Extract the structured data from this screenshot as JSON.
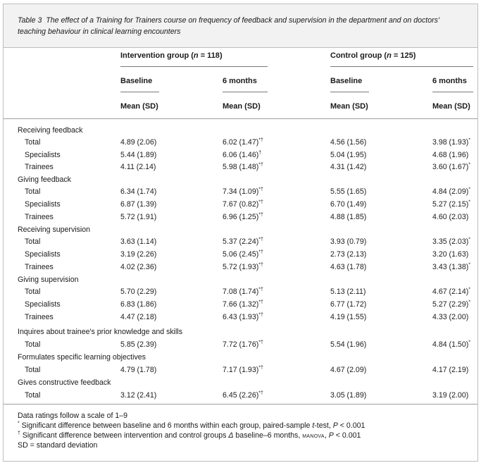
{
  "caption": {
    "label": "Table 3",
    "text": "The effect of a Training for Trainers course on frequency of feedback and supervision in the department and on doctors' teaching behaviour in clinical learning encounters"
  },
  "groups": {
    "intervention": {
      "name": "Intervention group",
      "n_label": "n",
      "n_value": " = 118"
    },
    "control": {
      "name": "Control group",
      "n_label": "n",
      "n_value": " = 125"
    }
  },
  "subheaders": {
    "baseline": "Baseline",
    "six_months": "6 months",
    "mean_sd": "Mean (SD)"
  },
  "rows": [
    {
      "label": "Receiving feedback",
      "section": true
    },
    {
      "label": "Total",
      "c1": "4.89 (2.06)",
      "c2": "6.02 (1.47)*†",
      "c3": "4.56 (1.56)",
      "c4": "3.98 (1.93)*"
    },
    {
      "label": "Specialists",
      "c1": "5.44 (1.89)",
      "c2": "6.06 (1.46)†",
      "c3": "5.04 (1.95)",
      "c4": "4.68 (1.96)"
    },
    {
      "label": "Trainees",
      "c1": "4.11 (2.14)",
      "c2": "5.98 (1.48)*†",
      "c3": "4.31 (1.42)",
      "c4": "3.60 (1.67)*"
    },
    {
      "label": "Giving feedback",
      "section": true
    },
    {
      "label": "Total",
      "c1": "6.34 (1.74)",
      "c2": "7.34 (1.09)*†",
      "c3": "5.55 (1.65)",
      "c4": "4.84 (2.09)*"
    },
    {
      "label": "Specialists",
      "c1": "6.87 (1.39)",
      "c2": "7.67 (0.82)*†",
      "c3": "6.70 (1.49)",
      "c4": "5.27 (2.15)*"
    },
    {
      "label": "Trainees",
      "c1": "5.72 (1.91)",
      "c2": "6.96 (1.25)*†",
      "c3": "4.88 (1.85)",
      "c4": "4.60 (2.03)"
    },
    {
      "label": "Receiving supervision",
      "section": true
    },
    {
      "label": "Total",
      "c1": "3.63 (1.14)",
      "c2": "5.37 (2.24)*†",
      "c3": "3.93 (0.79)",
      "c4": "3.35 (2.03)*"
    },
    {
      "label": "Specialists",
      "c1": "3.19 (2.26)",
      "c2": "5.06 (2.45)*†",
      "c3": "2.73 (2.13)",
      "c4": "3.20 (1.63)"
    },
    {
      "label": "Trainees",
      "c1": "4.02 (2.36)",
      "c2": "5.72 (1.93)*†",
      "c3": "4.63 (1.78)",
      "c4": "3.43 (1.38)*"
    },
    {
      "label": "Giving supervision",
      "section": true
    },
    {
      "label": "Total",
      "c1": "5.70 (2.29)",
      "c2": "7.08 (1.74)*†",
      "c3": "5.13 (2.11)",
      "c4": "4.67 (2.14)*"
    },
    {
      "label": "Specialists",
      "c1": "6.83 (1.86)",
      "c2": "7.66 (1.32)*†",
      "c3": "6.77 (1.72)",
      "c4": "5.27 (2.29)*"
    },
    {
      "label": "Trainees",
      "c1": "4.47 (2.18)",
      "c2": "6.43 (1.93)*†",
      "c3": "4.19 (1.55)",
      "c4": "4.33 (2.00)"
    },
    {
      "label": "Inquires about trainee's prior knowledge and skills",
      "section": true
    },
    {
      "label": "Total",
      "c1": "5.85 (2.39)",
      "c2": "7.72 (1.76)*†",
      "c3": "5.54 (1.96)",
      "c4": "4.84 (1.50)*"
    },
    {
      "label": "Formulates specific learning objectives",
      "section": true
    },
    {
      "label": "Total",
      "c1": "4.79 (1.78)",
      "c2": "7.17 (1.93)*†",
      "c3": "4.67 (2.09)",
      "c4": "4.17 (2.19)"
    },
    {
      "label": "Gives constructive feedback",
      "section": true
    },
    {
      "label": "Total",
      "c1": "3.12 (2.41)",
      "c2": "6.45 (2.26)*†",
      "c3": "3.05 (1.89)",
      "c4": "3.19 (2.00)"
    }
  ],
  "footnotes": {
    "scale": "Data ratings follow a scale of 1–9",
    "star": {
      "mark": "*",
      "text": " Significant difference between baseline and 6 months within each group, paired-sample ",
      "test": "t",
      "test_rest": "-test, ",
      "p": "P",
      "p_rest": " < 0.001"
    },
    "dagger": {
      "mark": "†",
      "text": " Significant difference between intervention and control groups ",
      "delta": "Δ",
      "text2": " baseline–6 months, ",
      "method": "manova",
      "sep": ", ",
      "p": "P",
      "p_rest": " < 0.001"
    },
    "sd": "SD = standard deviation"
  }
}
